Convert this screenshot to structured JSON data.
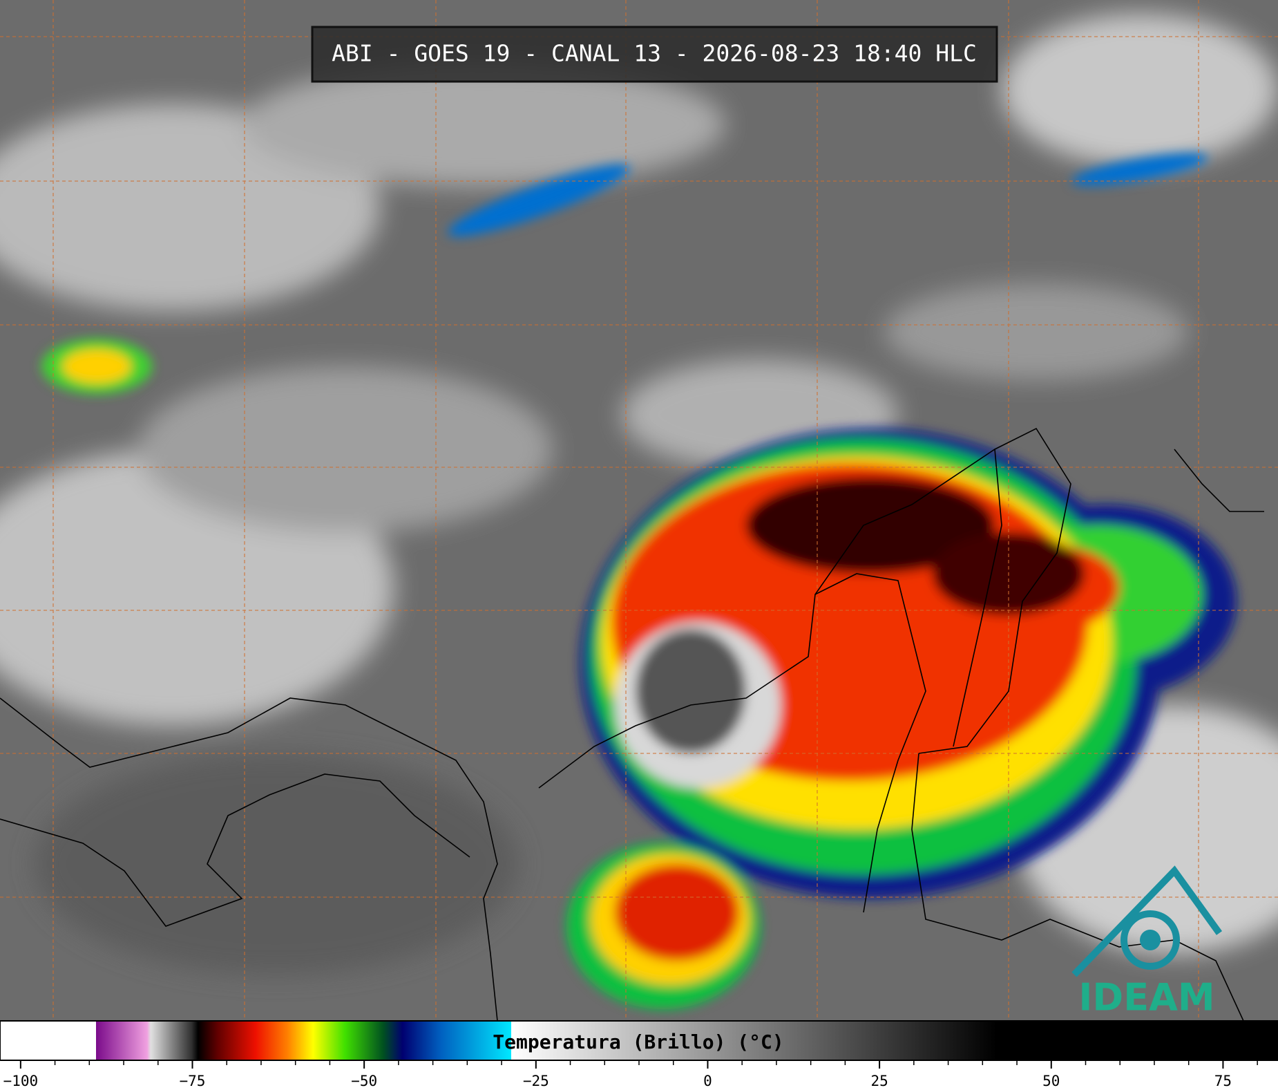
{
  "header": {
    "title": "ABI - GOES 19 - CANAL 13 - 2026-08-23 18:40 HLC"
  },
  "logo": {
    "text": "IDEAM"
  },
  "colorbar": {
    "label": "Temperatura (Brillo) (°C)",
    "lim": [
      -103,
      83
    ],
    "ticks": [
      {
        "value": -100,
        "label": "−100"
      },
      {
        "value": -75,
        "label": "−75"
      },
      {
        "value": -50,
        "label": "−50"
      },
      {
        "value": -25,
        "label": "−25"
      },
      0,
      25,
      50,
      75
    ],
    "minor_ticks": [
      -95,
      -90,
      -85,
      -80,
      -70,
      -65,
      -60,
      -55,
      -45,
      -40,
      -35,
      -30,
      -20,
      -15,
      -10,
      -5,
      5,
      10,
      15,
      20,
      30,
      35,
      40,
      45,
      55,
      60,
      65,
      70,
      80
    ]
  }
}
